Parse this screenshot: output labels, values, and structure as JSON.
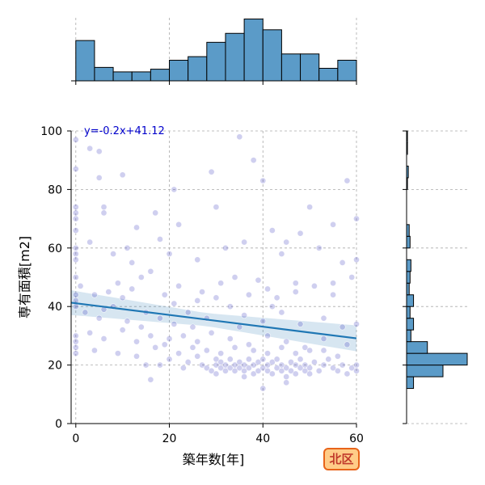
{
  "chart_data": {
    "type": "scatter",
    "xlabel": "築年数[年]",
    "ylabel": "専有面積[m2]",
    "xlim": [
      -1,
      60
    ],
    "ylim": [
      0,
      100
    ],
    "xticks": [
      0,
      20,
      40,
      60
    ],
    "yticks": [
      0,
      20,
      40,
      60,
      80,
      100
    ],
    "grid": true,
    "annotation": "y=-0.2x+41.12",
    "badge": "北区",
    "colors": {
      "points": "#4040c0",
      "regression": "#1f77b4",
      "histogram": "#5b9bc8"
    },
    "regression": {
      "slope": -0.2,
      "intercept": 41.12,
      "x_range": [
        -1,
        60
      ]
    },
    "top_histogram": {
      "bin_edges": [
        0,
        4,
        8,
        12,
        16,
        20,
        24,
        28,
        32,
        36,
        40,
        44,
        48,
        52,
        56,
        60
      ],
      "counts": [
        45,
        15,
        10,
        10,
        13,
        23,
        27,
        43,
        53,
        69,
        57,
        30,
        30,
        14,
        23
      ]
    },
    "right_histogram": {
      "bin_edges": [
        0,
        4,
        8,
        12,
        16,
        20,
        24,
        28,
        32,
        36,
        40,
        44,
        48,
        52,
        56,
        60,
        64,
        68,
        72,
        76,
        80,
        84,
        88,
        92,
        96,
        100
      ],
      "counts": [
        0,
        0,
        0,
        8,
        42,
        70,
        24,
        5,
        8,
        4,
        8,
        3,
        4,
        5,
        0,
        4,
        3,
        0,
        0,
        0,
        1,
        2,
        0,
        1,
        1
      ]
    },
    "points": [
      [
        0,
        97
      ],
      [
        0,
        87
      ],
      [
        0,
        74
      ],
      [
        0,
        72
      ],
      [
        0,
        70
      ],
      [
        0,
        66
      ],
      [
        0,
        60
      ],
      [
        0,
        58
      ],
      [
        0,
        56
      ],
      [
        0,
        50
      ],
      [
        0,
        44
      ],
      [
        0,
        42
      ],
      [
        0,
        40
      ],
      [
        0,
        30
      ],
      [
        0,
        28
      ],
      [
        0,
        26
      ],
      [
        0,
        24
      ],
      [
        3,
        94
      ],
      [
        5,
        93
      ],
      [
        5,
        84
      ],
      [
        6,
        74
      ],
      [
        6,
        72
      ],
      [
        10,
        85
      ],
      [
        11,
        60
      ],
      [
        13,
        67
      ],
      [
        17,
        72
      ],
      [
        18,
        63
      ],
      [
        21,
        80
      ],
      [
        22,
        68
      ],
      [
        29,
        86
      ],
      [
        30,
        74
      ],
      [
        35,
        98
      ],
      [
        38,
        90
      ],
      [
        40,
        83
      ],
      [
        42,
        66
      ],
      [
        45,
        62
      ],
      [
        48,
        65
      ],
      [
        50,
        74
      ],
      [
        55,
        68
      ],
      [
        58,
        83
      ],
      [
        60,
        70
      ],
      [
        3,
        62
      ],
      [
        8,
        58
      ],
      [
        12,
        55
      ],
      [
        16,
        52
      ],
      [
        20,
        58
      ],
      [
        26,
        56
      ],
      [
        32,
        60
      ],
      [
        36,
        62
      ],
      [
        44,
        58
      ],
      [
        52,
        60
      ],
      [
        57,
        55
      ],
      [
        60,
        56
      ],
      [
        1,
        47
      ],
      [
        4,
        44
      ],
      [
        7,
        45
      ],
      [
        9,
        48
      ],
      [
        12,
        46
      ],
      [
        14,
        50
      ],
      [
        19,
        44
      ],
      [
        22,
        47
      ],
      [
        27,
        45
      ],
      [
        31,
        48
      ],
      [
        34,
        50
      ],
      [
        37,
        44
      ],
      [
        39,
        49
      ],
      [
        41,
        46
      ],
      [
        43,
        43
      ],
      [
        47,
        45
      ],
      [
        51,
        47
      ],
      [
        55,
        44
      ],
      [
        59,
        50
      ],
      [
        2,
        38
      ],
      [
        5,
        36
      ],
      [
        8,
        40
      ],
      [
        11,
        35
      ],
      [
        15,
        38
      ],
      [
        18,
        36
      ],
      [
        21,
        34
      ],
      [
        24,
        38
      ],
      [
        28,
        36
      ],
      [
        33,
        40
      ],
      [
        36,
        37
      ],
      [
        40,
        35
      ],
      [
        44,
        38
      ],
      [
        48,
        34
      ],
      [
        53,
        36
      ],
      [
        57,
        33
      ],
      [
        60,
        34
      ],
      [
        3,
        31
      ],
      [
        6,
        29
      ],
      [
        10,
        32
      ],
      [
        13,
        28
      ],
      [
        16,
        30
      ],
      [
        19,
        27
      ],
      [
        23,
        30
      ],
      [
        26,
        28
      ],
      [
        29,
        31
      ],
      [
        33,
        29
      ],
      [
        37,
        27
      ],
      [
        41,
        30
      ],
      [
        45,
        28
      ],
      [
        49,
        26
      ],
      [
        53,
        29
      ],
      [
        58,
        27
      ],
      [
        4,
        25
      ],
      [
        9,
        24
      ],
      [
        13,
        23
      ],
      [
        17,
        26
      ],
      [
        20,
        22
      ],
      [
        22,
        24
      ],
      [
        24,
        21
      ],
      [
        26,
        23
      ],
      [
        27,
        20
      ],
      [
        28,
        19
      ],
      [
        29,
        18
      ],
      [
        30,
        20
      ],
      [
        30,
        22
      ],
      [
        31,
        19
      ],
      [
        31,
        21
      ],
      [
        32,
        18
      ],
      [
        32,
        20
      ],
      [
        33,
        19
      ],
      [
        33,
        22
      ],
      [
        34,
        18
      ],
      [
        34,
        20
      ],
      [
        35,
        21
      ],
      [
        35,
        19
      ],
      [
        36,
        18
      ],
      [
        36,
        20
      ],
      [
        37,
        22
      ],
      [
        37,
        19
      ],
      [
        38,
        17
      ],
      [
        38,
        20
      ],
      [
        39,
        21
      ],
      [
        39,
        18
      ],
      [
        40,
        19
      ],
      [
        40,
        22
      ],
      [
        41,
        18
      ],
      [
        41,
        20
      ],
      [
        42,
        17
      ],
      [
        42,
        21
      ],
      [
        43,
        19
      ],
      [
        43,
        22
      ],
      [
        44,
        18
      ],
      [
        44,
        20
      ],
      [
        45,
        19
      ],
      [
        45,
        16
      ],
      [
        46,
        18
      ],
      [
        46,
        21
      ],
      [
        47,
        20
      ],
      [
        47,
        17
      ],
      [
        48,
        19
      ],
      [
        48,
        22
      ],
      [
        49,
        18
      ],
      [
        49,
        20
      ],
      [
        50,
        19
      ],
      [
        50,
        17
      ],
      [
        51,
        21
      ],
      [
        52,
        18
      ],
      [
        53,
        20
      ],
      [
        54,
        22
      ],
      [
        55,
        19
      ],
      [
        56,
        18
      ],
      [
        57,
        20
      ],
      [
        58,
        17
      ],
      [
        59,
        19
      ],
      [
        60,
        18
      ],
      [
        60,
        20
      ],
      [
        25,
        26
      ],
      [
        28,
        25
      ],
      [
        31,
        24
      ],
      [
        34,
        26
      ],
      [
        38,
        25
      ],
      [
        41,
        24
      ],
      [
        44,
        26
      ],
      [
        47,
        24
      ],
      [
        50,
        25
      ],
      [
        15,
        20
      ],
      [
        18,
        20
      ],
      [
        23,
        19
      ],
      [
        30,
        17
      ],
      [
        36,
        16
      ],
      [
        40,
        12
      ],
      [
        45,
        14
      ],
      [
        16,
        15
      ],
      [
        56,
        23
      ],
      [
        53,
        25
      ],
      [
        20,
        29
      ],
      [
        25,
        33
      ],
      [
        35,
        33
      ],
      [
        42,
        40
      ],
      [
        47,
        48
      ],
      [
        55,
        48
      ],
      [
        30,
        43
      ],
      [
        26,
        42
      ],
      [
        21,
        41
      ],
      [
        10,
        43
      ],
      [
        6,
        39
      ],
      [
        14,
        33
      ]
    ]
  }
}
